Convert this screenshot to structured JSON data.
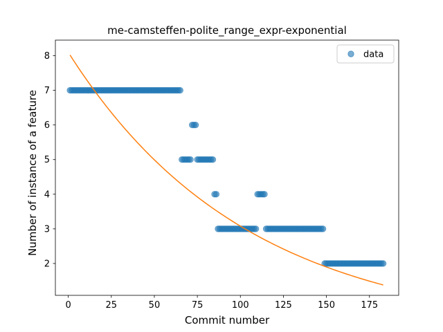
{
  "chart_data": {
    "type": "scatter",
    "title": "me-camsteffen-polite_range_expr-exponential",
    "xlabel": "Commit number",
    "ylabel": "Number of instance of a feature",
    "xlim": [
      -7.5,
      192
    ],
    "ylim": [
      1.08,
      8.45
    ],
    "xticks": [
      0,
      25,
      50,
      75,
      100,
      125,
      150,
      175
    ],
    "yticks": [
      2,
      3,
      4,
      5,
      6,
      7,
      8
    ],
    "legend": {
      "position": "top-right",
      "entries": [
        "data"
      ]
    },
    "colors": {
      "data": "#1f77b4",
      "fit": "#ff7f0e"
    },
    "series": [
      {
        "name": "data",
        "kind": "scatter",
        "segments": [
          {
            "x_from": 1,
            "x_to": 65,
            "y": 7
          },
          {
            "x_from": 66,
            "x_to": 71,
            "y": 5
          },
          {
            "x_from": 72,
            "x_to": 74,
            "y": 6
          },
          {
            "x_from": 75,
            "x_to": 84,
            "y": 5
          },
          {
            "x_from": 85,
            "x_to": 86,
            "y": 4
          },
          {
            "x_from": 87,
            "x_to": 109,
            "y": 3
          },
          {
            "x_from": 110,
            "x_to": 114,
            "y": 4
          },
          {
            "x_from": 115,
            "x_to": 148,
            "y": 3
          },
          {
            "x_from": 149,
            "x_to": 183,
            "y": 2
          }
        ]
      },
      {
        "kind": "line",
        "model": "exponential",
        "x_range": [
          1,
          183
        ],
        "y_start": 8.02,
        "y_end": 1.38
      }
    ]
  }
}
